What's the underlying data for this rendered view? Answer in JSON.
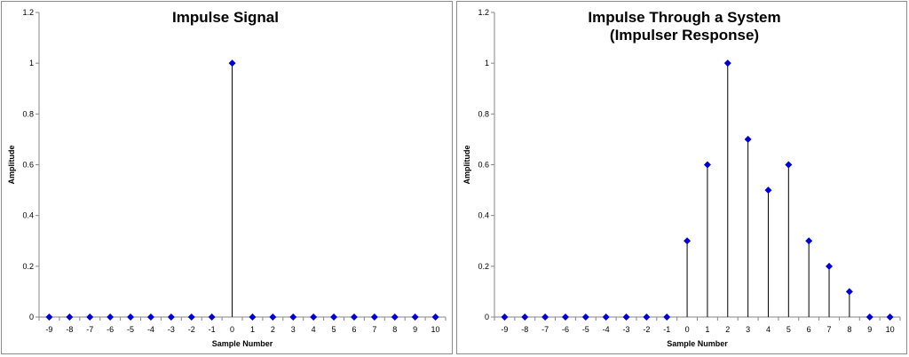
{
  "chart_data": [
    {
      "type": "stem",
      "title": [
        "Impulse Signal"
      ],
      "xlabel": "Sample Number",
      "ylabel": "Amplitude",
      "x": [
        -9,
        -8,
        -7,
        -6,
        -5,
        -4,
        -3,
        -2,
        -1,
        0,
        1,
        2,
        3,
        4,
        5,
        6,
        7,
        8,
        9,
        10
      ],
      "values": [
        0,
        0,
        0,
        0,
        0,
        0,
        0,
        0,
        0,
        1,
        0,
        0,
        0,
        0,
        0,
        0,
        0,
        0,
        0,
        0
      ],
      "ylim": [
        0,
        1.2
      ],
      "yticks": [
        "0",
        "0.2",
        "0.4",
        "0.6",
        "0.8",
        "1",
        "1.2"
      ],
      "grid": false,
      "marker_color": "#0000cc",
      "stem_color": "#000000"
    },
    {
      "type": "stem",
      "title": [
        "Impulse Through a System",
        "(Impulser Response)"
      ],
      "xlabel": "Sample Number",
      "ylabel": "Amplitude",
      "x": [
        -9,
        -8,
        -7,
        -6,
        -5,
        -4,
        -3,
        -2,
        -1,
        0,
        1,
        2,
        3,
        4,
        5,
        6,
        7,
        8,
        9,
        10
      ],
      "values": [
        0,
        0,
        0,
        0,
        0,
        0,
        0,
        0,
        0,
        0.3,
        0.6,
        1,
        0.7,
        0.5,
        0.6,
        0.3,
        0.2,
        0.1,
        0,
        0
      ],
      "ylim": [
        0,
        1.2
      ],
      "yticks": [
        "0",
        "0.2",
        "0.4",
        "0.6",
        "0.8",
        "1",
        "1.2"
      ],
      "grid": false,
      "marker_color": "#0000cc",
      "stem_color": "#000000"
    }
  ]
}
